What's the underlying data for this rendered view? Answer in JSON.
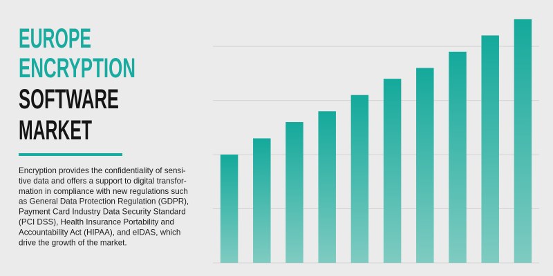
{
  "chart_data": {
    "type": "bar",
    "title": [
      "EUROPE",
      "ENCRYPTION",
      "SOFTWARE",
      "MARKET"
    ],
    "description": [
      "Encryption provides the confidentiality of sensi-",
      "tive data and offers a support to digital transfor-",
      "mation in compliance with new regulations such",
      "as General Data Protection Regulation (GDPR),",
      "Payment Card Industry Data Security Standard",
      "(PCI DSS), Health Insurance Portability and",
      "Accountability Act (HIPAA), and eIDAS, which",
      "drive the growth of the market."
    ],
    "categories": [
      null,
      null,
      null,
      null,
      null,
      null,
      null,
      null,
      null,
      null
    ],
    "values": [
      2.0,
      2.3,
      2.6,
      2.8,
      3.1,
      3.4,
      3.6,
      3.9,
      4.2,
      4.5
    ],
    "color": "#14a99b",
    "ylim": [
      0,
      4.6
    ],
    "yticks": [
      0,
      1,
      2,
      3,
      4
    ],
    "grid": true
  }
}
